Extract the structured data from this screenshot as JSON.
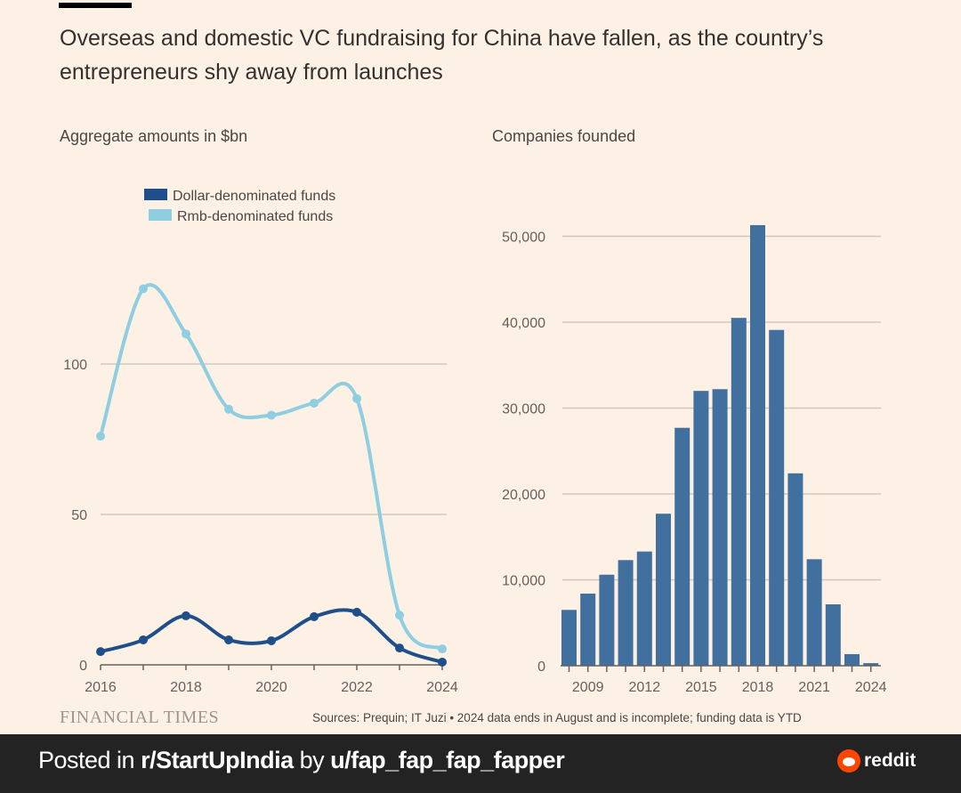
{
  "title": "Overseas and domestic VC fundraising for China have fallen, as the country’s entrepreneurs shy away from launches",
  "footer_source": {
    "publisher": "FINANCIAL TIMES",
    "sources": "Sources: Prequin; IT Juzi • 2024 data ends in August and is incomplete; funding data is YTD"
  },
  "reddit_bar": {
    "posted_prefix": "Posted in ",
    "subreddit": "r/StartUpIndia",
    "by": " by ",
    "user": "u/fap_fap_fap_fapper",
    "brand": "reddit"
  },
  "colors": {
    "dollar": "#1e4f8a",
    "rmb": "#8fcde0",
    "bars": "#41709f",
    "grid": "#d3c7bc",
    "background": "#fdf1e6"
  },
  "chart_data": [
    {
      "type": "line",
      "title": "Aggregate amounts in $bn",
      "xlabel": "",
      "ylabel": "",
      "x": [
        2016,
        2017,
        2018,
        2019,
        2020,
        2021,
        2022,
        2023,
        2024
      ],
      "xticks": [
        "2016",
        "2018",
        "2020",
        "2022",
        "2024"
      ],
      "yticks": [
        "0",
        "50",
        "100"
      ],
      "ylim": [
        0,
        130
      ],
      "grid": true,
      "legend": "top-center",
      "series": [
        {
          "name": "Dollar-denominated funds",
          "values": [
            4.4,
            8.3,
            16.3,
            8.3,
            8.0,
            16.0,
            17.5,
            5.6,
            0.9
          ]
        },
        {
          "name": "Rmb-denominated funds",
          "values": [
            76,
            125,
            110,
            85,
            83,
            87,
            88.5,
            16.5,
            5.3
          ]
        }
      ]
    },
    {
      "type": "bar",
      "title": "Companies founded",
      "categories": [
        "2008",
        "2009",
        "2010",
        "2011",
        "2012",
        "2013",
        "2014",
        "2015",
        "2016",
        "2017",
        "2018",
        "2019",
        "2020",
        "2021",
        "2022",
        "2023",
        "2024"
      ],
      "xticks": [
        "2009",
        "2012",
        "2015",
        "2018",
        "2021",
        "2024"
      ],
      "yticks": [
        "0",
        "10,000",
        "20,000",
        "30,000",
        "40,000",
        "50,000"
      ],
      "values": [
        6500,
        8400,
        10600,
        12300,
        13300,
        17700,
        27700,
        32000,
        32200,
        40500,
        51300,
        39100,
        22400,
        12400,
        7150,
        1350,
        300
      ],
      "ylim": [
        0,
        50000
      ],
      "grid": true,
      "xlabel": "",
      "ylabel": ""
    }
  ]
}
